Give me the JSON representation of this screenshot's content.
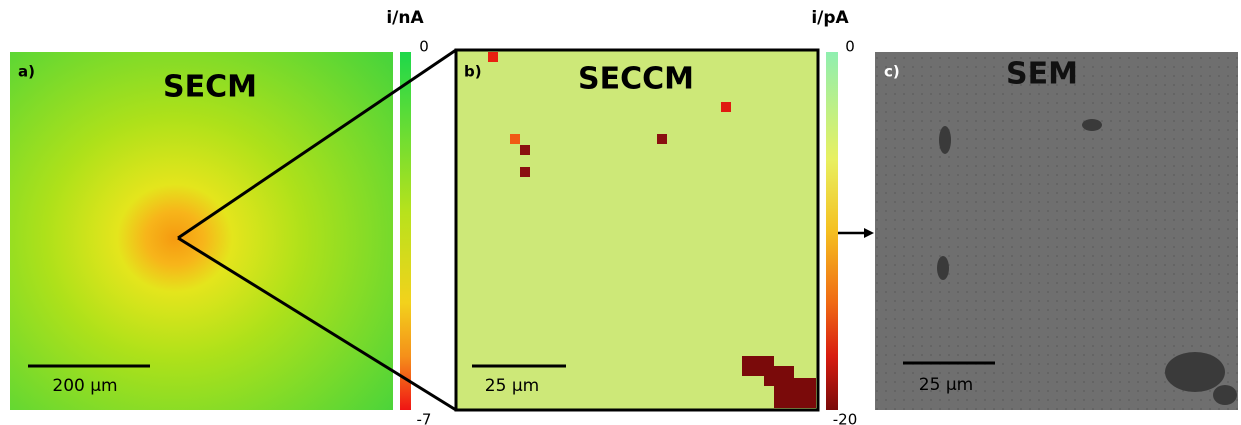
{
  "panels": [
    {
      "label": "a)",
      "title": "SECM",
      "scale_bar": "200 µm",
      "colorbar": {
        "unit": "i/nA",
        "max": "0",
        "min": "-7"
      }
    },
    {
      "label": "b)",
      "title": "SECCM",
      "scale_bar": "25 µm",
      "colorbar": {
        "unit": "i/pA",
        "max": "0",
        "min": "-20"
      }
    },
    {
      "label": "c)",
      "title": "SEM",
      "scale_bar": "25 µm"
    }
  ]
}
